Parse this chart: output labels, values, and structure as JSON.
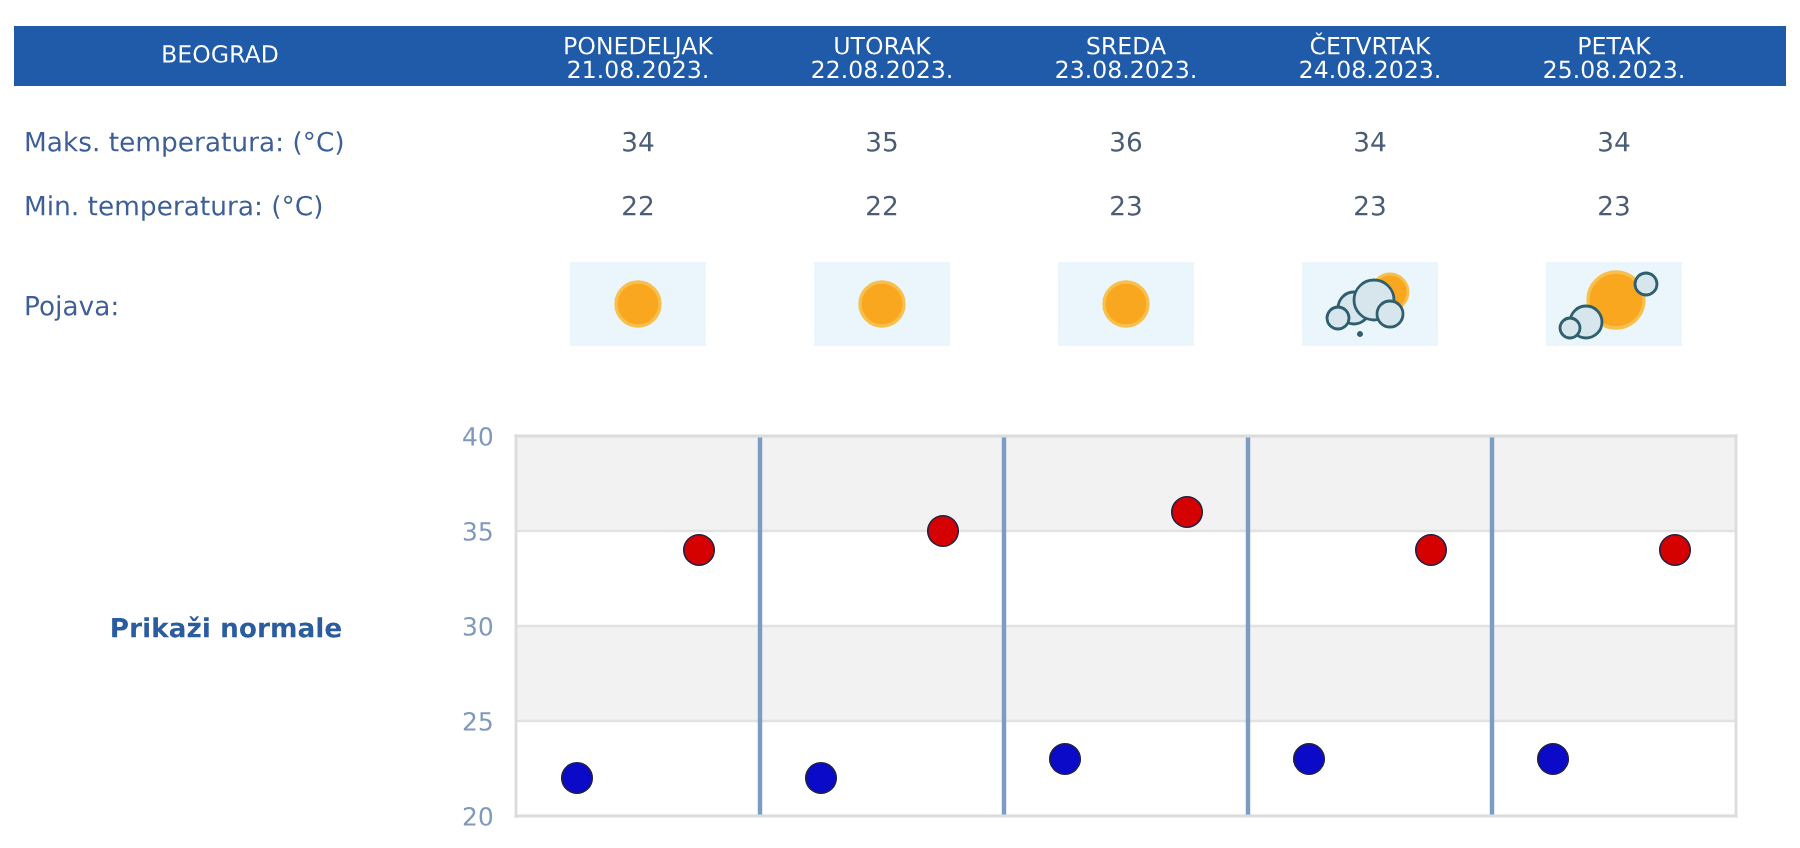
{
  "chart_data": {
    "type": "scatter",
    "title": "BEOGRAD",
    "categories": [
      null,
      null,
      null,
      null,
      null
    ],
    "series": [
      {
        "color": "#d50000",
        "values": [
          34,
          35,
          36,
          34,
          34
        ]
      },
      {
        "color": "#0a0ac8",
        "values": [
          22,
          22,
          23,
          23,
          23
        ]
      }
    ],
    "ylim": [
      20,
      40
    ],
    "yticks": [
      20,
      25,
      30,
      35,
      40
    ],
    "grid": true,
    "bands": [
      {
        "axis": "y",
        "from": 25,
        "to": 30,
        "color": "#f2f2f2"
      },
      {
        "axis": "y",
        "from": 35,
        "to": 40,
        "color": "#f2f2f2"
      }
    ],
    "marker": "circle",
    "data_labels": true,
    "annotations": [
      "PONEDELJAK\n21.08.2023.",
      "UTORAK\n22.08.2023.",
      "SREDA\n23.08.2023.",
      "ČETVRTAK\n24.08.2023.",
      "PETAK\n25.08.2023.",
      "Maks. temperatura: (°C)",
      "Min. temperatura: (°C)",
      "Pojava:",
      "Prikaži normale"
    ]
  }
}
